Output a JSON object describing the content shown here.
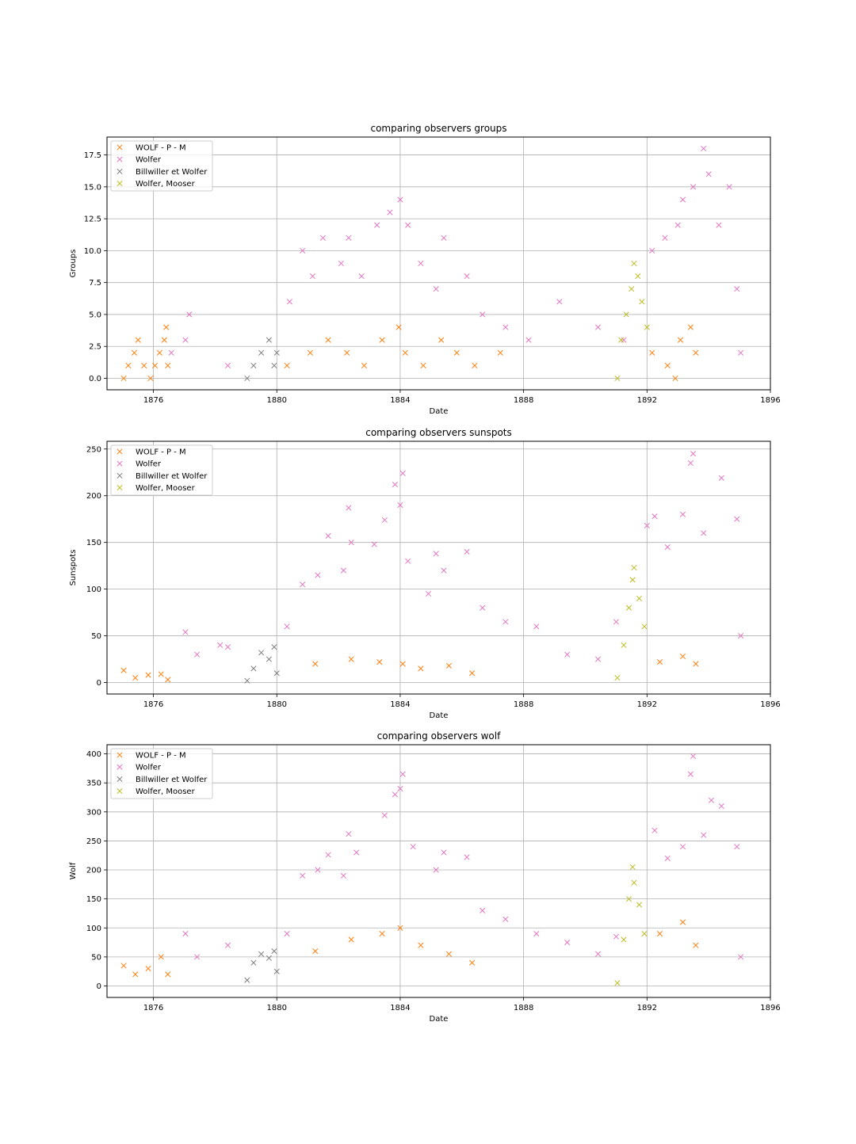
{
  "chart_data": [
    {
      "type": "scatter",
      "title": "comparing observers groups",
      "xlabel": "Date",
      "ylabel": "Groups",
      "xlim": [
        "1874-07-01",
        "1896-01-01"
      ],
      "ylim": [
        -0.9,
        18.9
      ],
      "x_ticks": [
        "1876",
        "1880",
        "1884",
        "1888",
        "1892",
        "1896"
      ],
      "y_ticks": [
        "0.0",
        "2.5",
        "5.0",
        "7.5",
        "10.0",
        "12.5",
        "15.0",
        "17.5"
      ],
      "grid": true,
      "legend": "upper-left",
      "series": [
        {
          "name": "WOLF - P - M",
          "color": "#ff7f0e",
          "marker": "x",
          "points": [
            [
              "1875-01-15",
              0
            ],
            [
              "1875-03-10",
              1
            ],
            [
              "1875-05-20",
              2
            ],
            [
              "1875-07-04",
              3
            ],
            [
              "1875-09-12",
              1
            ],
            [
              "1875-11-28",
              0
            ],
            [
              "1876-01-20",
              1
            ],
            [
              "1876-03-15",
              2
            ],
            [
              "1876-05-10",
              3
            ],
            [
              "1876-06-01",
              4
            ],
            [
              "1876-06-20",
              1
            ],
            [
              "1880-05-01",
              1
            ],
            [
              "1881-02-01",
              2
            ],
            [
              "1881-09-01",
              3
            ],
            [
              "1882-04-10",
              2
            ],
            [
              "1882-11-01",
              1
            ],
            [
              "1883-06-01",
              3
            ],
            [
              "1883-12-15",
              4
            ],
            [
              "1884-03-01",
              2
            ],
            [
              "1884-10-01",
              1
            ],
            [
              "1885-05-01",
              3
            ],
            [
              "1885-11-01",
              2
            ],
            [
              "1886-06-01",
              1
            ],
            [
              "1887-04-01",
              2
            ],
            [
              "1892-03-01",
              2
            ],
            [
              "1892-09-01",
              1
            ],
            [
              "1893-02-01",
              3
            ],
            [
              "1893-06-01",
              4
            ],
            [
              "1893-08-01",
              2
            ],
            [
              "1892-12-01",
              0
            ]
          ]
        },
        {
          "name": "Wolfer",
          "color": "#e377c2",
          "marker": "x",
          "points": [
            [
              "1876-08-01",
              2
            ],
            [
              "1877-01-15",
              3
            ],
            [
              "1877-03-01",
              5
            ],
            [
              "1878-06-01",
              1
            ],
            [
              "1880-06-01",
              6
            ],
            [
              "1880-11-01",
              10
            ],
            [
              "1881-03-01",
              8
            ],
            [
              "1881-07-01",
              11
            ],
            [
              "1882-02-01",
              9
            ],
            [
              "1882-05-01",
              11
            ],
            [
              "1882-10-01",
              8
            ],
            [
              "1883-04-01",
              12
            ],
            [
              "1883-09-01",
              13
            ],
            [
              "1884-01-01",
              14
            ],
            [
              "1884-04-01",
              12
            ],
            [
              "1884-09-01",
              9
            ],
            [
              "1885-03-01",
              7
            ],
            [
              "1885-06-01",
              11
            ],
            [
              "1886-03-01",
              8
            ],
            [
              "1886-09-01",
              5
            ],
            [
              "1887-06-01",
              4
            ],
            [
              "1888-03-01",
              3
            ],
            [
              "1889-03-01",
              6
            ],
            [
              "1890-06-01",
              4
            ],
            [
              "1891-04-01",
              3
            ],
            [
              "1892-03-01",
              10
            ],
            [
              "1892-08-01",
              11
            ],
            [
              "1893-01-01",
              12
            ],
            [
              "1893-03-01",
              14
            ],
            [
              "1893-07-01",
              15
            ],
            [
              "1893-11-01",
              18
            ],
            [
              "1894-01-01",
              16
            ],
            [
              "1894-05-01",
              12
            ],
            [
              "1894-09-01",
              15
            ],
            [
              "1894-12-01",
              7
            ],
            [
              "1895-01-15",
              2
            ]
          ]
        },
        {
          "name": "Billwiller et Wolfer",
          "color": "#7f7f7f",
          "marker": "x",
          "points": [
            [
              "1879-01-15",
              0
            ],
            [
              "1879-04-01",
              1
            ],
            [
              "1879-07-01",
              2
            ],
            [
              "1879-10-01",
              3
            ],
            [
              "1879-12-01",
              1
            ],
            [
              "1880-01-01",
              2
            ]
          ]
        },
        {
          "name": "Wolfer, Mooser",
          "color": "#bcbd22",
          "marker": "x",
          "points": [
            [
              "1891-01-15",
              0
            ],
            [
              "1891-03-01",
              3
            ],
            [
              "1891-05-01",
              5
            ],
            [
              "1891-07-01",
              7
            ],
            [
              "1891-08-01",
              9
            ],
            [
              "1891-09-15",
              8
            ],
            [
              "1891-11-01",
              6
            ],
            [
              "1892-01-01",
              4
            ]
          ]
        }
      ]
    },
    {
      "type": "scatter",
      "title": "comparing observers sunspots",
      "xlabel": "Date",
      "ylabel": "Sunspots",
      "xlim": [
        "1874-07-01",
        "1896-01-01"
      ],
      "ylim": [
        -12.3,
        258.3
      ],
      "x_ticks": [
        "1876",
        "1880",
        "1884",
        "1888",
        "1892",
        "1896"
      ],
      "y_ticks": [
        "0",
        "50",
        "100",
        "150",
        "200",
        "250"
      ],
      "grid": true,
      "legend": "upper-left",
      "series": [
        {
          "name": "WOLF - P - M",
          "color": "#ff7f0e",
          "marker": "x",
          "points": [
            [
              "1875-01-15",
              13
            ],
            [
              "1875-06-01",
              5
            ],
            [
              "1875-11-01",
              8
            ],
            [
              "1876-04-01",
              9
            ],
            [
              "1876-06-20",
              3
            ],
            [
              "1881-04-01",
              20
            ],
            [
              "1882-06-01",
              25
            ],
            [
              "1883-05-01",
              22
            ],
            [
              "1884-02-01",
              20
            ],
            [
              "1884-09-01",
              15
            ],
            [
              "1885-08-01",
              18
            ],
            [
              "1886-05-01",
              10
            ],
            [
              "1892-06-01",
              22
            ],
            [
              "1893-03-01",
              28
            ],
            [
              "1893-08-01",
              20
            ]
          ]
        },
        {
          "name": "Wolfer",
          "color": "#e377c2",
          "marker": "x",
          "points": [
            [
              "1877-01-15",
              54
            ],
            [
              "1877-06-01",
              30
            ],
            [
              "1878-03-01",
              40
            ],
            [
              "1878-06-01",
              38
            ],
            [
              "1880-05-01",
              60
            ],
            [
              "1880-11-01",
              105
            ],
            [
              "1881-05-01",
              115
            ],
            [
              "1881-09-01",
              157
            ],
            [
              "1882-03-01",
              120
            ],
            [
              "1882-05-01",
              187
            ],
            [
              "1882-06-01",
              150
            ],
            [
              "1883-03-01",
              148
            ],
            [
              "1883-07-01",
              174
            ],
            [
              "1883-11-01",
              212
            ],
            [
              "1884-01-01",
              190
            ],
            [
              "1884-02-01",
              224
            ],
            [
              "1884-04-01",
              130
            ],
            [
              "1884-12-01",
              95
            ],
            [
              "1885-03-01",
              138
            ],
            [
              "1885-06-01",
              120
            ],
            [
              "1886-03-01",
              140
            ],
            [
              "1886-09-01",
              80
            ],
            [
              "1887-06-01",
              65
            ],
            [
              "1888-06-01",
              60
            ],
            [
              "1889-06-01",
              30
            ],
            [
              "1890-06-01",
              25
            ],
            [
              "1891-01-01",
              65
            ],
            [
              "1892-01-01",
              168
            ],
            [
              "1892-04-01",
              178
            ],
            [
              "1892-09-01",
              145
            ],
            [
              "1893-03-01",
              180
            ],
            [
              "1893-06-01",
              235
            ],
            [
              "1893-07-01",
              245
            ],
            [
              "1893-11-01",
              160
            ],
            [
              "1894-06-01",
              219
            ],
            [
              "1894-12-01",
              175
            ],
            [
              "1895-01-15",
              50
            ]
          ]
        },
        {
          "name": "Billwiller et Wolfer",
          "color": "#7f7f7f",
          "marker": "x",
          "points": [
            [
              "1879-01-15",
              2
            ],
            [
              "1879-04-01",
              15
            ],
            [
              "1879-07-01",
              32
            ],
            [
              "1879-10-01",
              25
            ],
            [
              "1879-12-01",
              38
            ],
            [
              "1880-01-01",
              10
            ]
          ]
        },
        {
          "name": "Wolfer, Mooser",
          "color": "#bcbd22",
          "marker": "x",
          "points": [
            [
              "1891-01-15",
              5
            ],
            [
              "1891-04-01",
              40
            ],
            [
              "1891-06-01",
              80
            ],
            [
              "1891-07-15",
              110
            ],
            [
              "1891-08-01",
              123
            ],
            [
              "1891-10-01",
              90
            ],
            [
              "1891-12-01",
              60
            ]
          ]
        }
      ]
    },
    {
      "type": "scatter",
      "title": "comparing observers wolf",
      "xlabel": "Date",
      "ylabel": "Wolf",
      "xlim": [
        "1874-07-01",
        "1896-01-01"
      ],
      "ylim": [
        -19.8,
        415.8
      ],
      "x_ticks": [
        "1876",
        "1880",
        "1884",
        "1888",
        "1892",
        "1896"
      ],
      "y_ticks": [
        "0",
        "50",
        "100",
        "150",
        "200",
        "250",
        "300",
        "350",
        "400"
      ],
      "grid": true,
      "legend": "upper-left",
      "series": [
        {
          "name": "WOLF - P - M",
          "color": "#ff7f0e",
          "marker": "x",
          "points": [
            [
              "1875-01-15",
              35
            ],
            [
              "1875-06-01",
              20
            ],
            [
              "1875-11-01",
              30
            ],
            [
              "1876-04-01",
              50
            ],
            [
              "1876-06-20",
              20
            ],
            [
              "1881-04-01",
              60
            ],
            [
              "1882-06-01",
              80
            ],
            [
              "1883-06-01",
              90
            ],
            [
              "1884-01-01",
              100
            ],
            [
              "1884-09-01",
              70
            ],
            [
              "1885-08-01",
              55
            ],
            [
              "1886-05-01",
              40
            ],
            [
              "1892-06-01",
              90
            ],
            [
              "1893-03-01",
              110
            ],
            [
              "1893-08-01",
              70
            ]
          ]
        },
        {
          "name": "Wolfer",
          "color": "#e377c2",
          "marker": "x",
          "points": [
            [
              "1877-01-15",
              90
            ],
            [
              "1877-06-01",
              50
            ],
            [
              "1878-06-01",
              70
            ],
            [
              "1880-05-01",
              90
            ],
            [
              "1880-11-01",
              190
            ],
            [
              "1881-05-01",
              200
            ],
            [
              "1881-09-01",
              226
            ],
            [
              "1882-03-01",
              190
            ],
            [
              "1882-05-01",
              262
            ],
            [
              "1882-08-01",
              230
            ],
            [
              "1883-07-01",
              294
            ],
            [
              "1883-11-01",
              330
            ],
            [
              "1884-01-01",
              340
            ],
            [
              "1884-02-01",
              365
            ],
            [
              "1884-06-01",
              240
            ],
            [
              "1885-03-01",
              200
            ],
            [
              "1885-06-01",
              230
            ],
            [
              "1886-03-01",
              222
            ],
            [
              "1886-09-01",
              130
            ],
            [
              "1887-06-01",
              115
            ],
            [
              "1888-06-01",
              90
            ],
            [
              "1889-06-01",
              75
            ],
            [
              "1890-06-01",
              55
            ],
            [
              "1891-01-01",
              85
            ],
            [
              "1892-04-01",
              268
            ],
            [
              "1892-09-01",
              220
            ],
            [
              "1893-03-01",
              240
            ],
            [
              "1893-06-01",
              365
            ],
            [
              "1893-07-01",
              396
            ],
            [
              "1893-11-01",
              260
            ],
            [
              "1894-02-01",
              320
            ],
            [
              "1894-06-01",
              310
            ],
            [
              "1894-12-01",
              240
            ],
            [
              "1895-01-15",
              50
            ]
          ]
        },
        {
          "name": "Billwiller et Wolfer",
          "color": "#7f7f7f",
          "marker": "x",
          "points": [
            [
              "1879-01-15",
              10
            ],
            [
              "1879-04-01",
              40
            ],
            [
              "1879-07-01",
              55
            ],
            [
              "1879-10-01",
              48
            ],
            [
              "1879-12-01",
              60
            ],
            [
              "1880-01-01",
              25
            ]
          ]
        },
        {
          "name": "Wolfer, Mooser",
          "color": "#bcbd22",
          "marker": "x",
          "points": [
            [
              "1891-01-15",
              5
            ],
            [
              "1891-04-01",
              80
            ],
            [
              "1891-06-01",
              150
            ],
            [
              "1891-07-15",
              205
            ],
            [
              "1891-08-01",
              178
            ],
            [
              "1891-10-01",
              140
            ],
            [
              "1891-12-01",
              90
            ]
          ]
        }
      ]
    }
  ]
}
